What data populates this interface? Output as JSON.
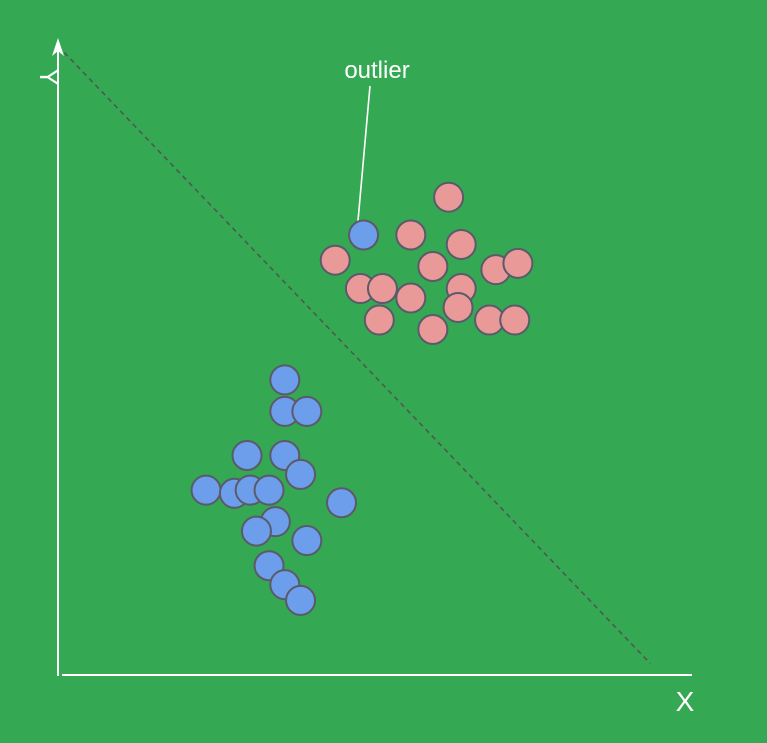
{
  "colors": {
    "background": "#35a853",
    "axis": "#ffffff",
    "boundary": "#4d5a4d",
    "class_a": "#6d9eeb",
    "class_b": "#ea9999",
    "point_stroke": "#5a5a6a",
    "text": "#ffffff"
  },
  "labels": {
    "x_axis": "X",
    "y_axis": "Y",
    "outlier": "outlier"
  },
  "chart_data": {
    "type": "scatter",
    "title": "",
    "xlabel": "X",
    "ylabel": "Y",
    "grid": false,
    "decision_boundary": {
      "from": [
        0,
        10
      ],
      "to": [
        9.4,
        0.2
      ],
      "style": "dashed"
    },
    "series": [
      {
        "color": "#6d9eeb",
        "points": [
          [
            3.6,
            4.7
          ],
          [
            3.6,
            4.2
          ],
          [
            3.95,
            4.2
          ],
          [
            3.0,
            3.5
          ],
          [
            3.6,
            3.5
          ],
          [
            3.85,
            3.2
          ],
          [
            2.35,
            2.95
          ],
          [
            2.8,
            2.9
          ],
          [
            3.05,
            2.95
          ],
          [
            3.35,
            2.95
          ],
          [
            4.5,
            2.75
          ],
          [
            3.45,
            2.45
          ],
          [
            3.15,
            2.3
          ],
          [
            3.95,
            2.15
          ],
          [
            3.35,
            1.75
          ],
          [
            3.6,
            1.45
          ],
          [
            3.85,
            1.2
          ],
          [
            4.85,
            7.0
          ]
        ]
      },
      {
        "color": "#ea9999",
        "points": [
          [
            6.2,
            7.6
          ],
          [
            5.6,
            7.0
          ],
          [
            6.4,
            6.85
          ],
          [
            4.4,
            6.6
          ],
          [
            5.95,
            6.5
          ],
          [
            6.95,
            6.45
          ],
          [
            7.3,
            6.55
          ],
          [
            4.8,
            6.15
          ],
          [
            5.15,
            6.15
          ],
          [
            5.6,
            6.0
          ],
          [
            6.4,
            6.15
          ],
          [
            6.35,
            5.85
          ],
          [
            6.85,
            5.65
          ],
          [
            7.25,
            5.65
          ],
          [
            5.1,
            5.65
          ],
          [
            5.95,
            5.5
          ]
        ]
      }
    ],
    "annotations": [
      {
        "text": "outlier",
        "point": [
          4.85,
          7.0
        ]
      }
    ]
  }
}
